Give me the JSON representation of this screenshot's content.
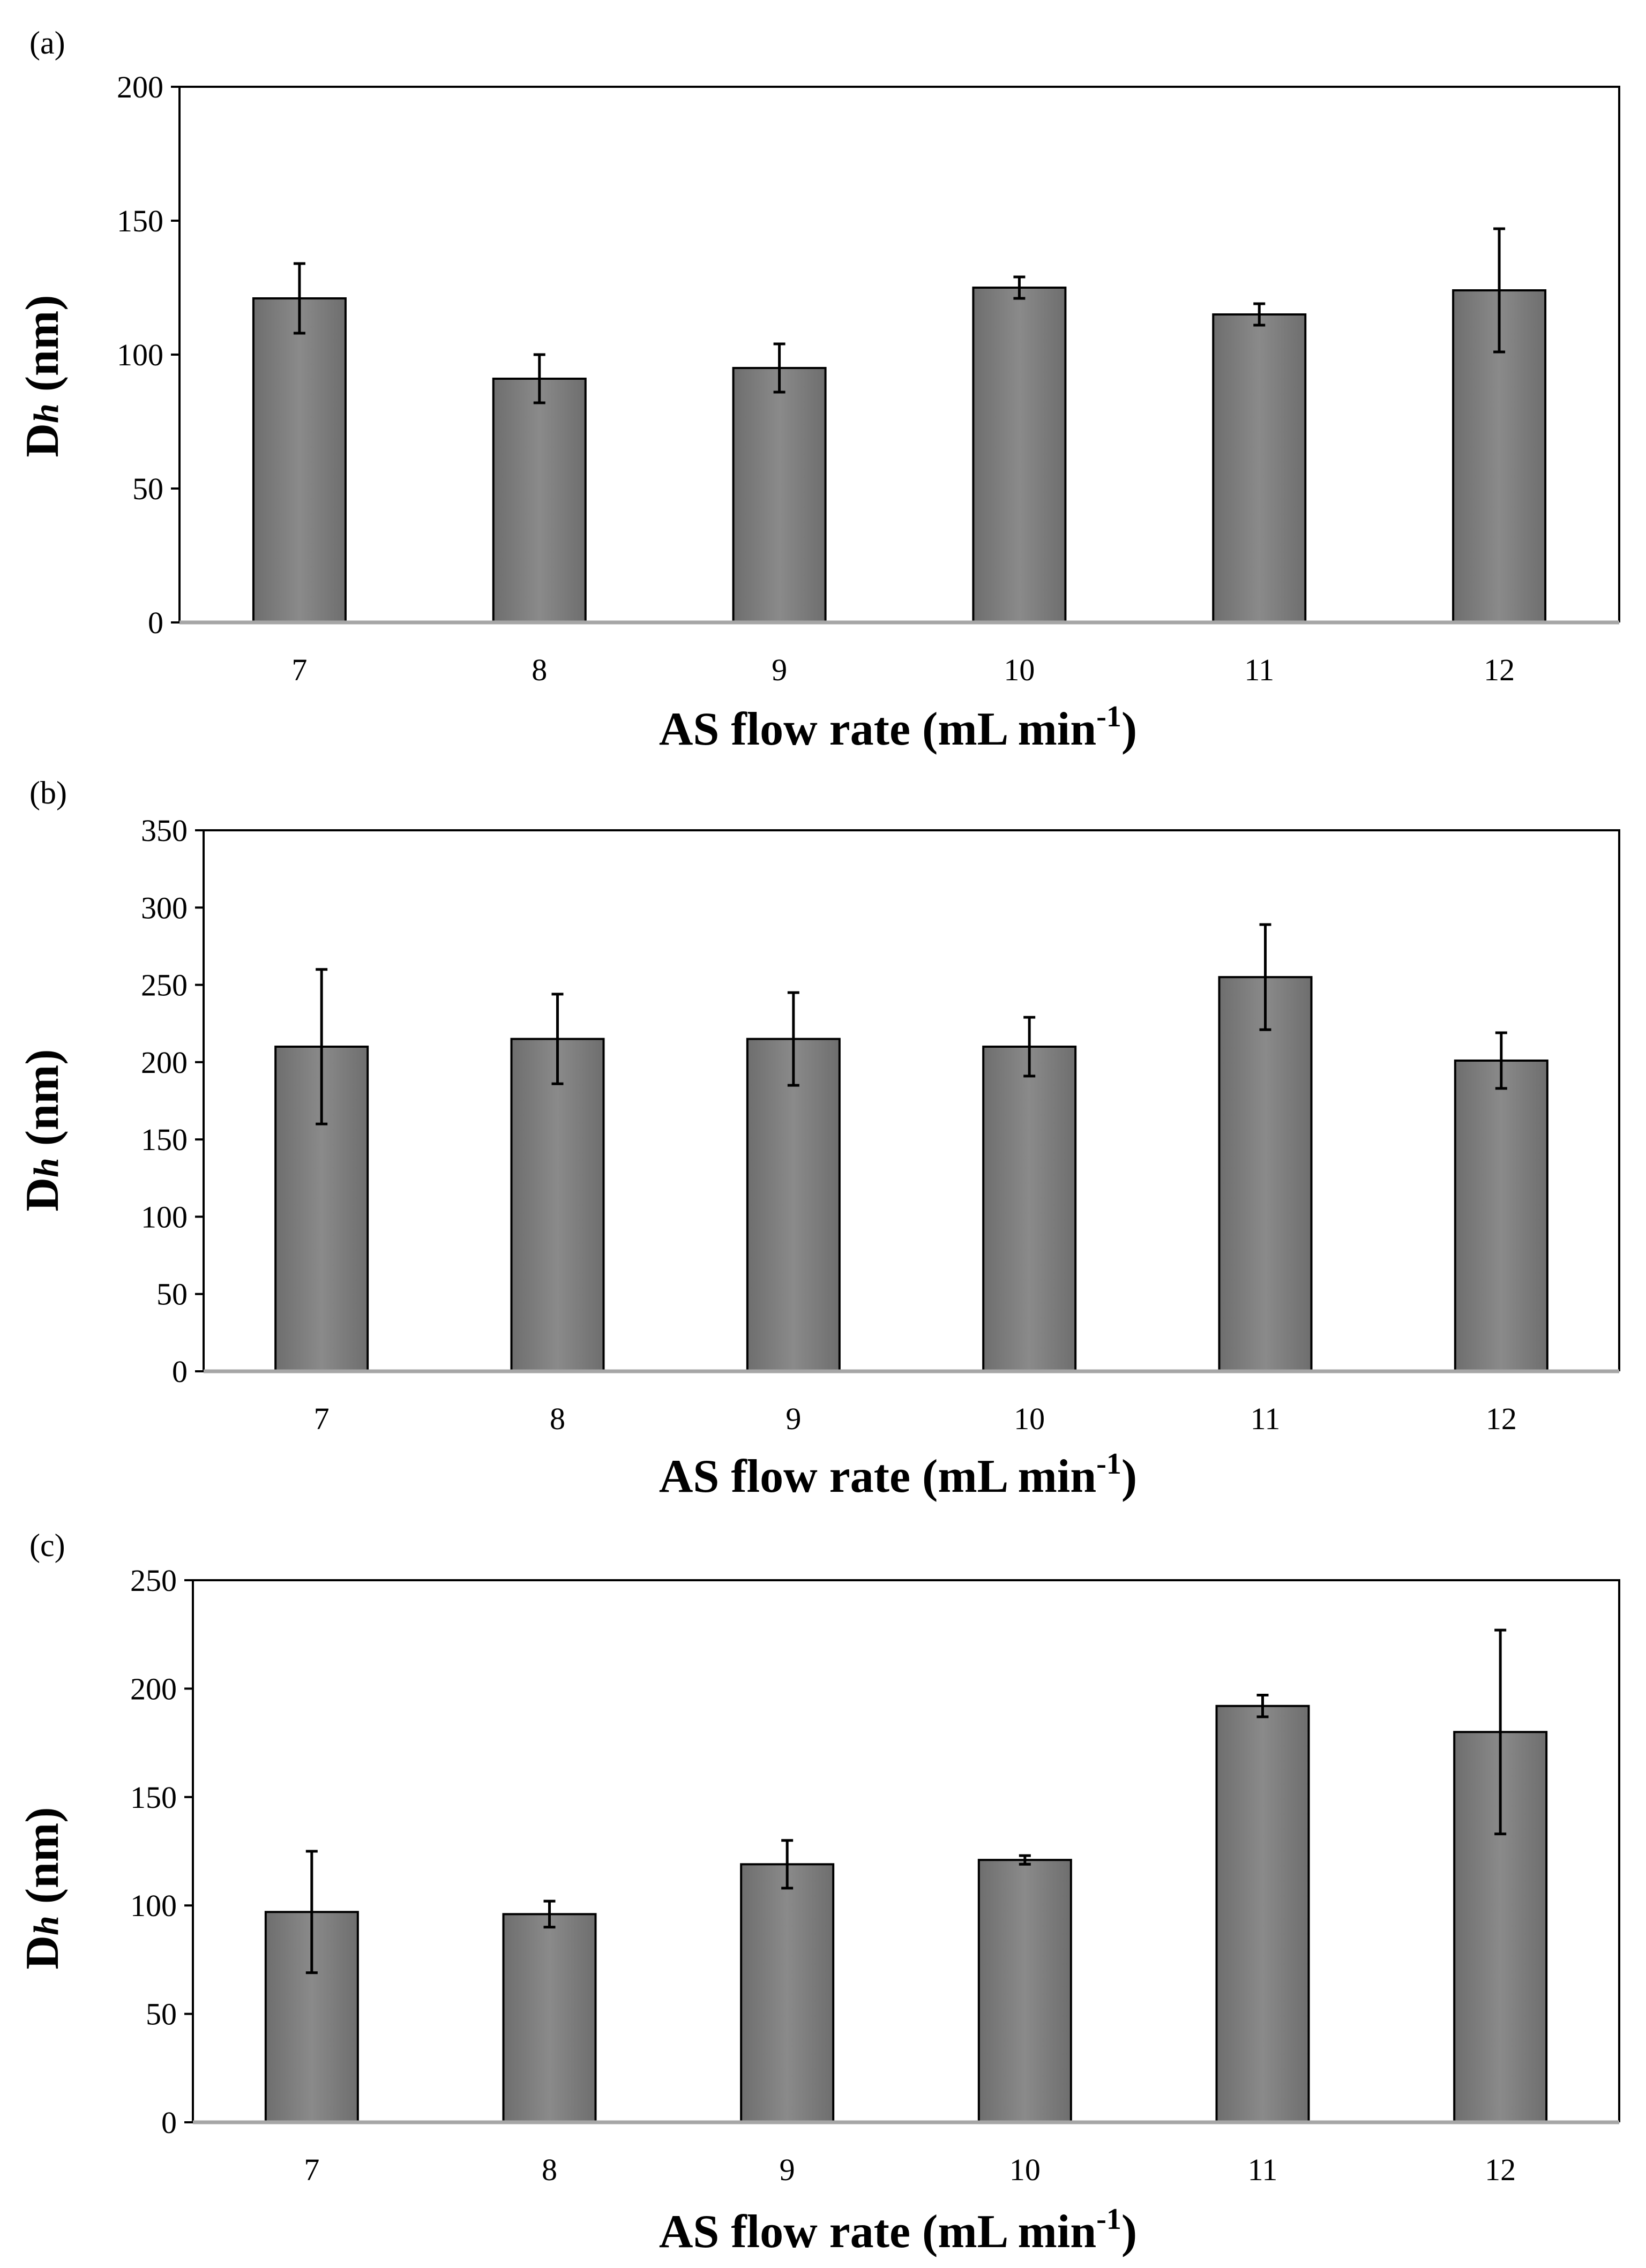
{
  "chart_data": [
    {
      "type": "bar",
      "panel_label": "(a)",
      "title": "",
      "categories": [
        "7",
        "8",
        "9",
        "10",
        "11",
        "12"
      ],
      "values": [
        121,
        91,
        95,
        125,
        115,
        124
      ],
      "errors": [
        13,
        9,
        9,
        4,
        4,
        23
      ],
      "xlabel": "AS flow rate (mL min-1)",
      "xlabel_main": "AS flow rate (mL min",
      "xlabel_sup": "-1",
      "xlabel_end": ")",
      "ylabel": "Dh (nm)",
      "ylabel_main": "D",
      "ylabel_sub": "h",
      "ylabel_unit": " (nm)",
      "ylim": [
        0,
        200
      ],
      "yticks": [
        "0",
        "50",
        "100",
        "150",
        "200"
      ],
      "grid": false,
      "bar_color": "#7f7f7f"
    },
    {
      "type": "bar",
      "panel_label": "(b)",
      "title": "",
      "categories": [
        "7",
        "8",
        "9",
        "10",
        "11",
        "12"
      ],
      "values": [
        210,
        215,
        215,
        210,
        255,
        201
      ],
      "errors": [
        50,
        29,
        30,
        19,
        34,
        18
      ],
      "xlabel": "AS flow rate (mL min-1)",
      "xlabel_main": "AS flow rate (mL min",
      "xlabel_sup": "-1",
      "xlabel_end": ")",
      "ylabel": "Dh (nm)",
      "ylabel_main": "D",
      "ylabel_sub": "h",
      "ylabel_unit": " (nm)",
      "ylim": [
        0,
        350
      ],
      "yticks": [
        "0",
        "50",
        "100",
        "150",
        "200",
        "250",
        "300",
        "350"
      ],
      "grid": false,
      "bar_color": "#7f7f7f"
    },
    {
      "type": "bar",
      "panel_label": "(c)",
      "title": "",
      "categories": [
        "7",
        "8",
        "9",
        "10",
        "11",
        "12"
      ],
      "values": [
        97,
        96,
        119,
        121,
        192,
        180
      ],
      "errors": [
        28,
        6,
        11,
        2,
        5,
        47
      ],
      "xlabel": "AS flow rate (mL min-1)",
      "xlabel_main": "AS flow rate (mL min",
      "xlabel_sup": "-1",
      "xlabel_end": ")",
      "ylabel": "Dh (nm)",
      "ylabel_main": "D",
      "ylabel_sub": "h",
      "ylabel_unit": " (nm)",
      "ylim": [
        0,
        250
      ],
      "yticks": [
        "0",
        "50",
        "100",
        "150",
        "200",
        "250"
      ],
      "grid": false,
      "bar_color": "#7f7f7f"
    }
  ]
}
